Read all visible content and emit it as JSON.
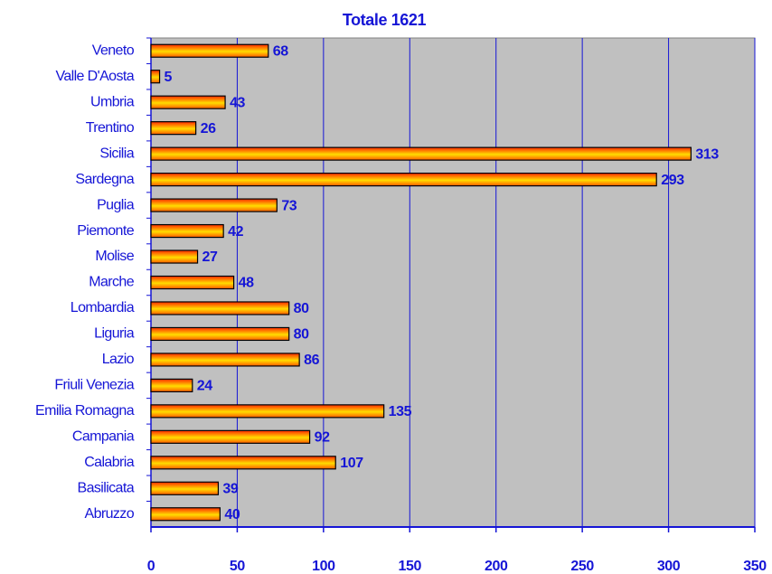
{
  "chart_data": {
    "type": "bar",
    "orientation": "horizontal",
    "subtitle": "Totale 1621",
    "categories": [
      "Veneto",
      "Valle D'Aosta",
      "Umbria",
      "Trentino",
      "Sicilia",
      "Sardegna",
      "Puglia",
      "Piemonte",
      "Molise",
      "Marche",
      "Lombardia",
      "Liguria",
      "Lazio",
      "Friuli Venezia",
      "Emilia Romagna",
      "Campania",
      "Calabria",
      "Basilicata",
      "Abruzzo"
    ],
    "values": [
      68,
      5,
      43,
      26,
      313,
      293,
      73,
      42,
      27,
      48,
      80,
      80,
      86,
      24,
      135,
      92,
      107,
      39,
      40
    ],
    "xlim": [
      0,
      350
    ],
    "xticks": [
      0,
      50,
      100,
      150,
      200,
      250,
      300,
      350
    ],
    "grid": true,
    "plot_background": "#c0c0c0",
    "grid_color": "#1515d6"
  }
}
